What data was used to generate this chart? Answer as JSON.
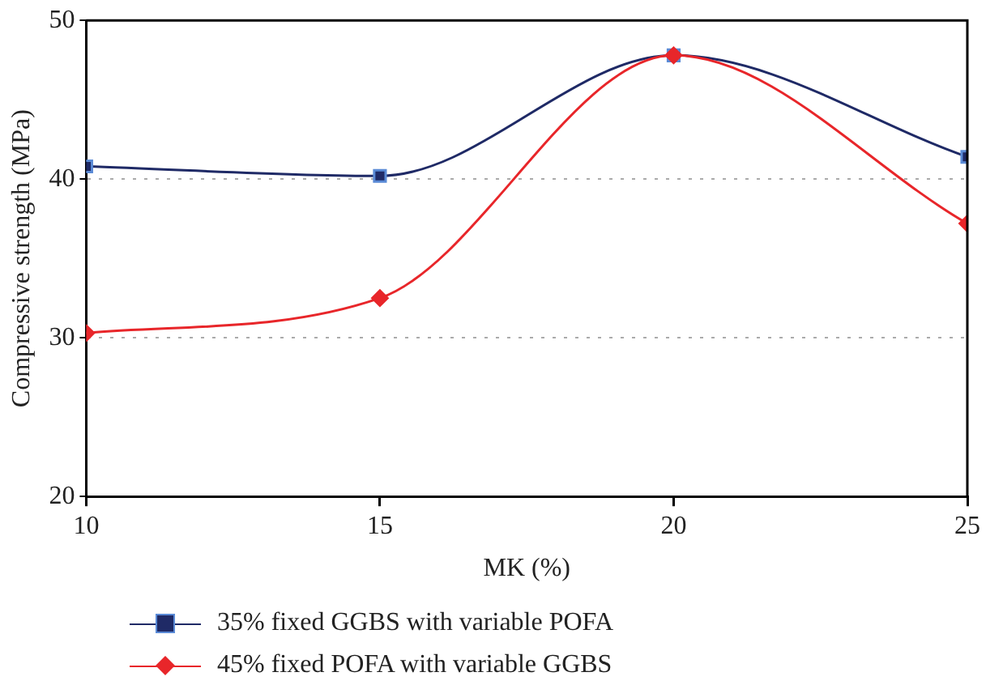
{
  "chart_data": {
    "type": "line",
    "xlabel": "MK (%)",
    "ylabel": "Compressive strength (MPa)",
    "x": [
      10,
      15,
      20,
      25
    ],
    "xlim": [
      10,
      25
    ],
    "xticks": [
      10,
      15,
      20,
      25
    ],
    "ylim": [
      20,
      50
    ],
    "yticks": [
      20,
      30,
      40,
      50
    ],
    "grid": "y",
    "legend": "bottom left",
    "series": [
      {
        "name": "35% fixed GGBS with variable POFA",
        "color": "#1f2a66",
        "marker": "square",
        "values": [
          40.8,
          40.2,
          47.8,
          41.4
        ]
      },
      {
        "name": "45% fixed POFA with variable GGBS",
        "color": "#e8262a",
        "marker": "diamond",
        "values": [
          30.3,
          32.5,
          47.8,
          37.2
        ]
      }
    ]
  }
}
